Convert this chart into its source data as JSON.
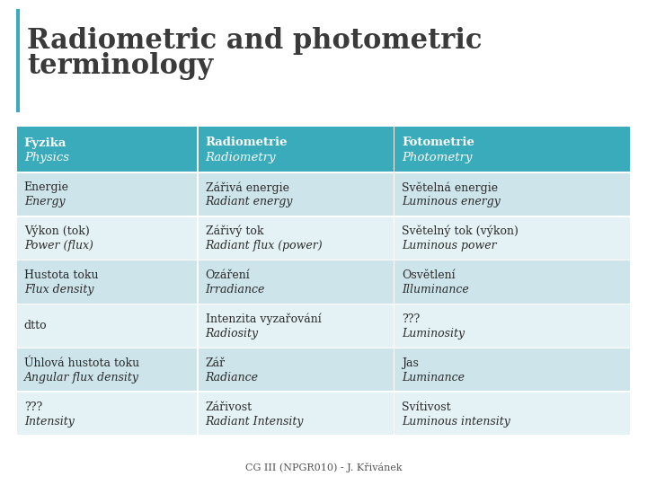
{
  "title_line1": "Radiometric and photometric",
  "title_line2": "terminology",
  "title_fontsize": 22,
  "title_color": "#3a3a3a",
  "header_bg": "#3aabba",
  "header_text_color": "#ffffff",
  "row_bg_odd": "#cce4ea",
  "row_bg_even": "#e4f2f5",
  "border_color": "#ffffff",
  "footer": "CG III (NPGR010) - J. Křivánek",
  "headers": [
    [
      "Fyzika",
      "Physics"
    ],
    [
      "Radiometrie",
      "Radiometry"
    ],
    [
      "Fotometrie",
      "Photometry"
    ]
  ],
  "rows": [
    [
      [
        "Energie",
        "Energy"
      ],
      [
        "Zářivá energie",
        "Radiant energy"
      ],
      [
        "Světelná energie",
        "Luminous energy"
      ]
    ],
    [
      [
        "Výkon (tok)",
        "Power (flux)"
      ],
      [
        "Zářivý tok",
        "Radiant flux (power)"
      ],
      [
        "Světelný tok (výkon)",
        "Luminous power"
      ]
    ],
    [
      [
        "Hustota toku",
        "Flux density"
      ],
      [
        "Ozáření",
        "Irradiance"
      ],
      [
        "Osvětlení",
        "Illuminance"
      ]
    ],
    [
      [
        "dtto",
        ""
      ],
      [
        "Intenzita vyzařování",
        "Radiosity"
      ],
      [
        "???",
        "Luminosity"
      ]
    ],
    [
      [
        "Úhlová hustota toku",
        "Angular flux density"
      ],
      [
        "Zář",
        "Radiance"
      ],
      [
        "Jas",
        "Luminance"
      ]
    ],
    [
      [
        "???",
        "Intensity"
      ],
      [
        "Zářivost",
        "Radiant Intensity"
      ],
      [
        "Svítivost",
        "Luminous intensity"
      ]
    ]
  ]
}
